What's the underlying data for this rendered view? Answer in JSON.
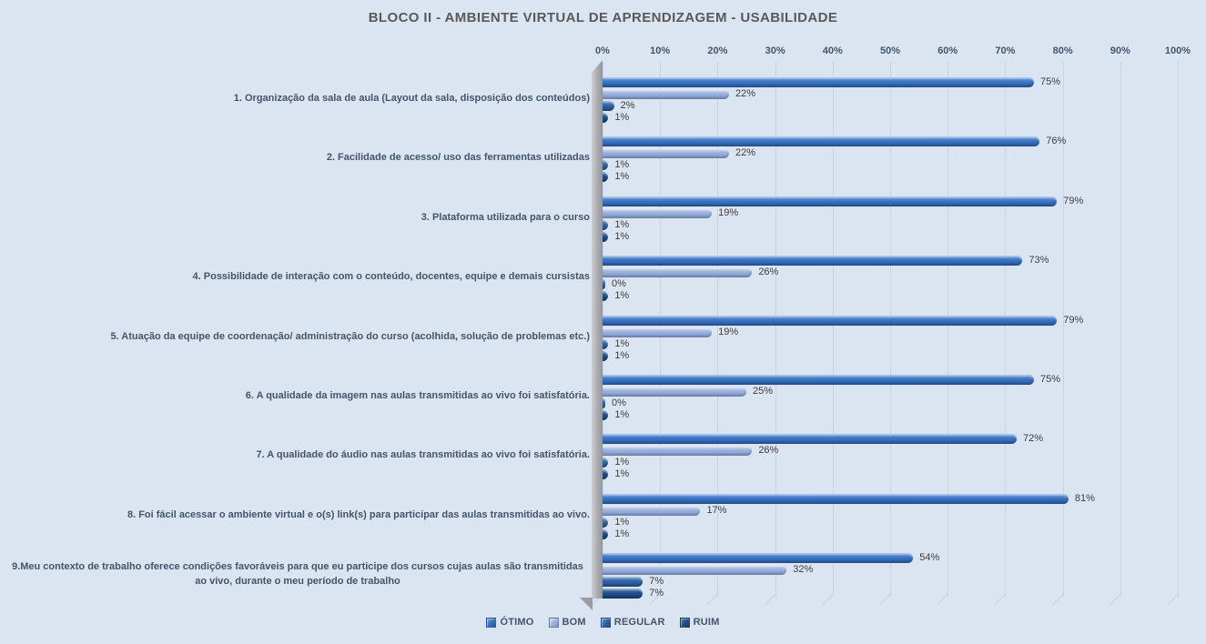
{
  "chart_data": {
    "type": "bar",
    "orientation": "horizontal",
    "style": "3d-cylinder-excel",
    "title": "BLOCO II - AMBIENTE VIRTUAL DE APRENDIZAGEM - USABILIDADE",
    "categories": [
      "1. Organização da sala de aula (Layout da sala, disposição dos conteúdos)",
      "2. Facilidade de acesso/ uso das ferramentas utilizadas",
      "3. Plataforma utilizada para o curso",
      "4. Possibilidade de interação com o conteúdo, docentes, equipe e demais cursistas",
      "5. Atuação da equipe de coordenação/ administração do curso (acolhida, solução de problemas etc.)",
      "6. A qualidade da imagem nas aulas transmitidas ao vivo foi satisfatória.",
      "7. A qualidade do áudio nas aulas transmitidas ao vivo foi satisfatória.",
      "8. Foi fácil acessar o ambiente virtual e o(s) link(s) para participar das aulas transmitidas ao vivo.",
      "9.Meu contexto de trabalho oferece condições favoráveis para que eu participe dos cursos cujas aulas são transmitidas ao vivo, durante o meu período de trabalho"
    ],
    "series": [
      {
        "name": "ÓTIMO",
        "color": "#3a74c4",
        "color_light": "#7ea8e0",
        "color_dark": "#2a5ba2",
        "values": [
          75,
          76,
          79,
          73,
          79,
          75,
          72,
          81,
          54
        ]
      },
      {
        "name": "BOM",
        "color": "#9db2de",
        "color_light": "#d8e1f3",
        "color_dark": "#7f97c9",
        "values": [
          22,
          22,
          19,
          26,
          19,
          25,
          26,
          17,
          32
        ]
      },
      {
        "name": "REGULAR",
        "color": "#2f64a6",
        "color_light": "#6e97cc",
        "color_dark": "#234e85",
        "values": [
          2,
          1,
          1,
          0,
          1,
          0,
          1,
          1,
          7
        ]
      },
      {
        "name": "RUIM",
        "color": "#20508b",
        "color_light": "#5d84b4",
        "color_dark": "#173c69",
        "values": [
          1,
          1,
          1,
          1,
          1,
          1,
          1,
          1,
          7
        ]
      }
    ],
    "value_suffix": "%",
    "xlim": [
      0,
      100
    ],
    "x_ticks": [
      "0%",
      "10%",
      "20%",
      "30%",
      "40%",
      "50%",
      "60%",
      "70%",
      "80%",
      "90%",
      "100%"
    ],
    "grid": true,
    "legend_position": "bottom",
    "data_labels": true
  }
}
